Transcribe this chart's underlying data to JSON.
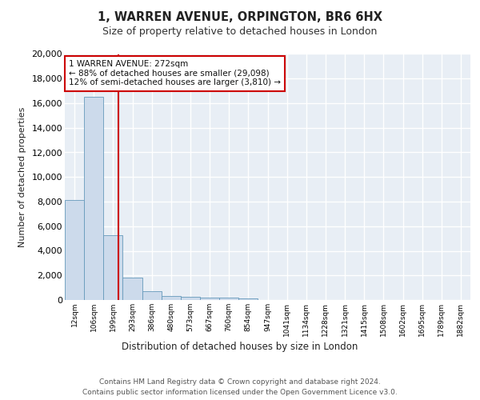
{
  "title_line1": "1, WARREN AVENUE, ORPINGTON, BR6 6HX",
  "title_line2": "Size of property relative to detached houses in London",
  "xlabel": "Distribution of detached houses by size in London",
  "ylabel": "Number of detached properties",
  "bin_labels": [
    "12sqm",
    "106sqm",
    "199sqm",
    "293sqm",
    "386sqm",
    "480sqm",
    "573sqm",
    "667sqm",
    "760sqm",
    "854sqm",
    "947sqm",
    "1041sqm",
    "1134sqm",
    "1228sqm",
    "1321sqm",
    "1415sqm",
    "1508sqm",
    "1602sqm",
    "1695sqm",
    "1789sqm",
    "1882sqm"
  ],
  "bar_heights": [
    8100,
    16500,
    5300,
    1850,
    700,
    320,
    230,
    210,
    170,
    130,
    0,
    0,
    0,
    0,
    0,
    0,
    0,
    0,
    0,
    0,
    0
  ],
  "bar_color": "#ccdaeb",
  "bar_edge_color": "#6699bb",
  "property_line_color": "#cc0000",
  "annotation_text": "1 WARREN AVENUE: 272sqm\n← 88% of detached houses are smaller (29,098)\n12% of semi-detached houses are larger (3,810) →",
  "annotation_box_color": "#ffffff",
  "annotation_box_edge": "#cc0000",
  "ylim": [
    0,
    20000
  ],
  "yticks": [
    0,
    2000,
    4000,
    6000,
    8000,
    10000,
    12000,
    14000,
    16000,
    18000,
    20000
  ],
  "footer_line1": "Contains HM Land Registry data © Crown copyright and database right 2024.",
  "footer_line2": "Contains public sector information licensed under the Open Government Licence v3.0.",
  "bg_color": "#ffffff",
  "plot_bg_color": "#e8eef5"
}
